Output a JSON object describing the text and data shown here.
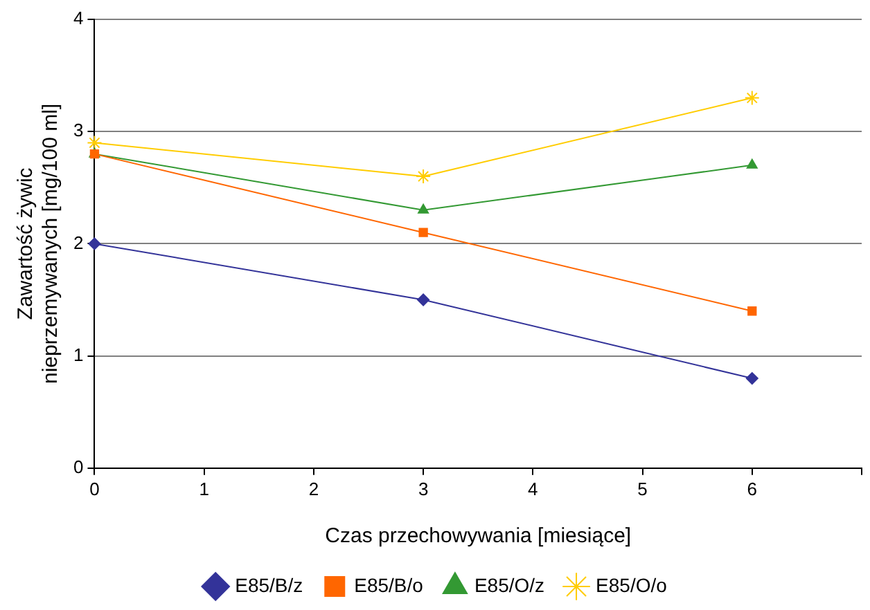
{
  "chart_data": {
    "type": "line",
    "xlabel": "Czas przechowywania [miesiące]",
    "ylabel": "Zawartość żywic nieprzemywanych [mg/100 ml]",
    "x": [
      0,
      3,
      6
    ],
    "series": [
      {
        "name": "E85/B/z",
        "color": "#333399",
        "marker": "diamond",
        "values": [
          2.0,
          1.5,
          0.8
        ]
      },
      {
        "name": "E85/B/o",
        "color": "#ff6600",
        "marker": "square",
        "values": [
          2.8,
          2.1,
          1.4
        ]
      },
      {
        "name": "E85/O/z",
        "color": "#339933",
        "marker": "triangle",
        "values": [
          2.8,
          2.3,
          2.7
        ]
      },
      {
        "name": "E85/O/o",
        "color": "#ffcc00",
        "marker": "cross",
        "values": [
          2.9,
          2.6,
          3.3
        ]
      }
    ],
    "xlim": [
      0,
      7
    ],
    "xticks": [
      0,
      1,
      2,
      3,
      4,
      5,
      6,
      {
        "value": 7,
        "label": null
      }
    ],
    "ylim": [
      0,
      4
    ],
    "yticks": [
      0,
      1,
      2,
      3,
      4
    ],
    "grid": "y",
    "legend": "bottom",
    "line_style": "solid"
  }
}
